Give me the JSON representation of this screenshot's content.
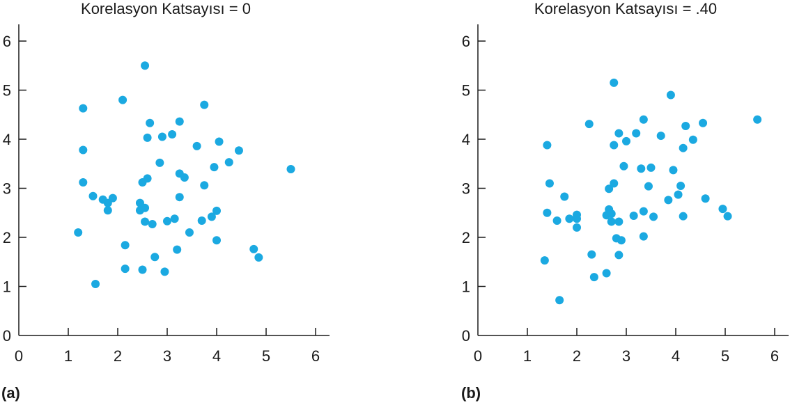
{
  "chart_data": [
    {
      "type": "scatter",
      "title": "Korelasyon Katsayısı = 0",
      "panel_label": "(a)",
      "xlabel": "",
      "ylabel": "",
      "xlim": [
        0,
        6
      ],
      "ylim": [
        0,
        6
      ],
      "xticks": [
        "0",
        "1",
        "2",
        "3",
        "4",
        "5",
        "6"
      ],
      "yticks": [
        "0",
        "1",
        "2",
        "3",
        "4",
        "5",
        "6"
      ],
      "grid": false,
      "color": "#1ba9e1",
      "points": [
        [
          1.2,
          2.1
        ],
        [
          1.3,
          4.63
        ],
        [
          1.3,
          3.78
        ],
        [
          1.3,
          3.12
        ],
        [
          1.5,
          2.84
        ],
        [
          1.55,
          1.05
        ],
        [
          1.7,
          2.77
        ],
        [
          1.8,
          2.7
        ],
        [
          1.8,
          2.55
        ],
        [
          1.9,
          2.8
        ],
        [
          2.1,
          4.8
        ],
        [
          2.15,
          1.36
        ],
        [
          2.15,
          1.84
        ],
        [
          2.45,
          2.55
        ],
        [
          2.45,
          2.7
        ],
        [
          2.5,
          1.34
        ],
        [
          2.5,
          3.12
        ],
        [
          2.55,
          5.5
        ],
        [
          2.55,
          2.6
        ],
        [
          2.55,
          2.32
        ],
        [
          2.6,
          4.03
        ],
        [
          2.6,
          3.2
        ],
        [
          2.65,
          4.33
        ],
        [
          2.7,
          2.27
        ],
        [
          2.75,
          1.6
        ],
        [
          2.85,
          3.52
        ],
        [
          2.9,
          4.05
        ],
        [
          2.95,
          1.3
        ],
        [
          3.0,
          2.33
        ],
        [
          3.1,
          4.1
        ],
        [
          3.15,
          2.38
        ],
        [
          3.2,
          1.75
        ],
        [
          3.25,
          4.36
        ],
        [
          3.25,
          3.3
        ],
        [
          3.25,
          2.82
        ],
        [
          3.35,
          3.22
        ],
        [
          3.45,
          2.1
        ],
        [
          3.6,
          3.86
        ],
        [
          3.7,
          2.34
        ],
        [
          3.75,
          4.7
        ],
        [
          3.75,
          3.06
        ],
        [
          3.9,
          2.42
        ],
        [
          3.95,
          3.43
        ],
        [
          4.0,
          2.54
        ],
        [
          4.0,
          1.94
        ],
        [
          4.05,
          3.95
        ],
        [
          4.25,
          3.53
        ],
        [
          4.45,
          3.77
        ],
        [
          4.75,
          1.76
        ],
        [
          4.85,
          1.59
        ],
        [
          5.5,
          3.39
        ]
      ]
    },
    {
      "type": "scatter",
      "title": "Korelasyon Katsayısı = .40",
      "panel_label": "(b)",
      "xlabel": "",
      "ylabel": "",
      "xlim": [
        0,
        6
      ],
      "ylim": [
        0,
        6
      ],
      "xticks": [
        "0",
        "1",
        "2",
        "3",
        "4",
        "5",
        "6"
      ],
      "yticks": [
        "0",
        "1",
        "2",
        "3",
        "4",
        "5",
        "6"
      ],
      "grid": false,
      "color": "#1ba9e1",
      "points": [
        [
          1.35,
          1.53
        ],
        [
          1.4,
          2.5
        ],
        [
          1.4,
          3.88
        ],
        [
          1.45,
          3.1
        ],
        [
          1.6,
          2.34
        ],
        [
          1.65,
          0.72
        ],
        [
          1.75,
          2.83
        ],
        [
          1.85,
          2.38
        ],
        [
          2.0,
          2.2
        ],
        [
          2.0,
          2.38
        ],
        [
          2.0,
          2.46
        ],
        [
          2.25,
          4.31
        ],
        [
          2.3,
          1.65
        ],
        [
          2.35,
          1.19
        ],
        [
          2.6,
          2.45
        ],
        [
          2.6,
          1.27
        ],
        [
          2.65,
          2.57
        ],
        [
          2.65,
          2.99
        ],
        [
          2.7,
          2.32
        ],
        [
          2.7,
          2.48
        ],
        [
          2.75,
          5.15
        ],
        [
          2.75,
          3.1
        ],
        [
          2.75,
          3.88
        ],
        [
          2.8,
          1.98
        ],
        [
          2.85,
          4.12
        ],
        [
          2.85,
          1.64
        ],
        [
          2.85,
          2.32
        ],
        [
          2.9,
          1.94
        ],
        [
          2.95,
          3.45
        ],
        [
          3.0,
          3.96
        ],
        [
          3.15,
          2.44
        ],
        [
          3.2,
          4.12
        ],
        [
          3.3,
          3.4
        ],
        [
          3.35,
          4.4
        ],
        [
          3.35,
          2.53
        ],
        [
          3.35,
          2.02
        ],
        [
          3.45,
          3.04
        ],
        [
          3.5,
          3.42
        ],
        [
          3.55,
          2.42
        ],
        [
          3.7,
          4.07
        ],
        [
          3.85,
          2.76
        ],
        [
          3.9,
          4.9
        ],
        [
          3.95,
          3.37
        ],
        [
          4.05,
          2.87
        ],
        [
          4.1,
          3.05
        ],
        [
          4.15,
          3.82
        ],
        [
          4.15,
          2.43
        ],
        [
          4.2,
          4.27
        ],
        [
          4.35,
          3.99
        ],
        [
          4.55,
          4.33
        ],
        [
          4.6,
          2.79
        ],
        [
          4.95,
          2.58
        ],
        [
          5.05,
          2.43
        ],
        [
          5.65,
          4.4
        ]
      ]
    }
  ]
}
